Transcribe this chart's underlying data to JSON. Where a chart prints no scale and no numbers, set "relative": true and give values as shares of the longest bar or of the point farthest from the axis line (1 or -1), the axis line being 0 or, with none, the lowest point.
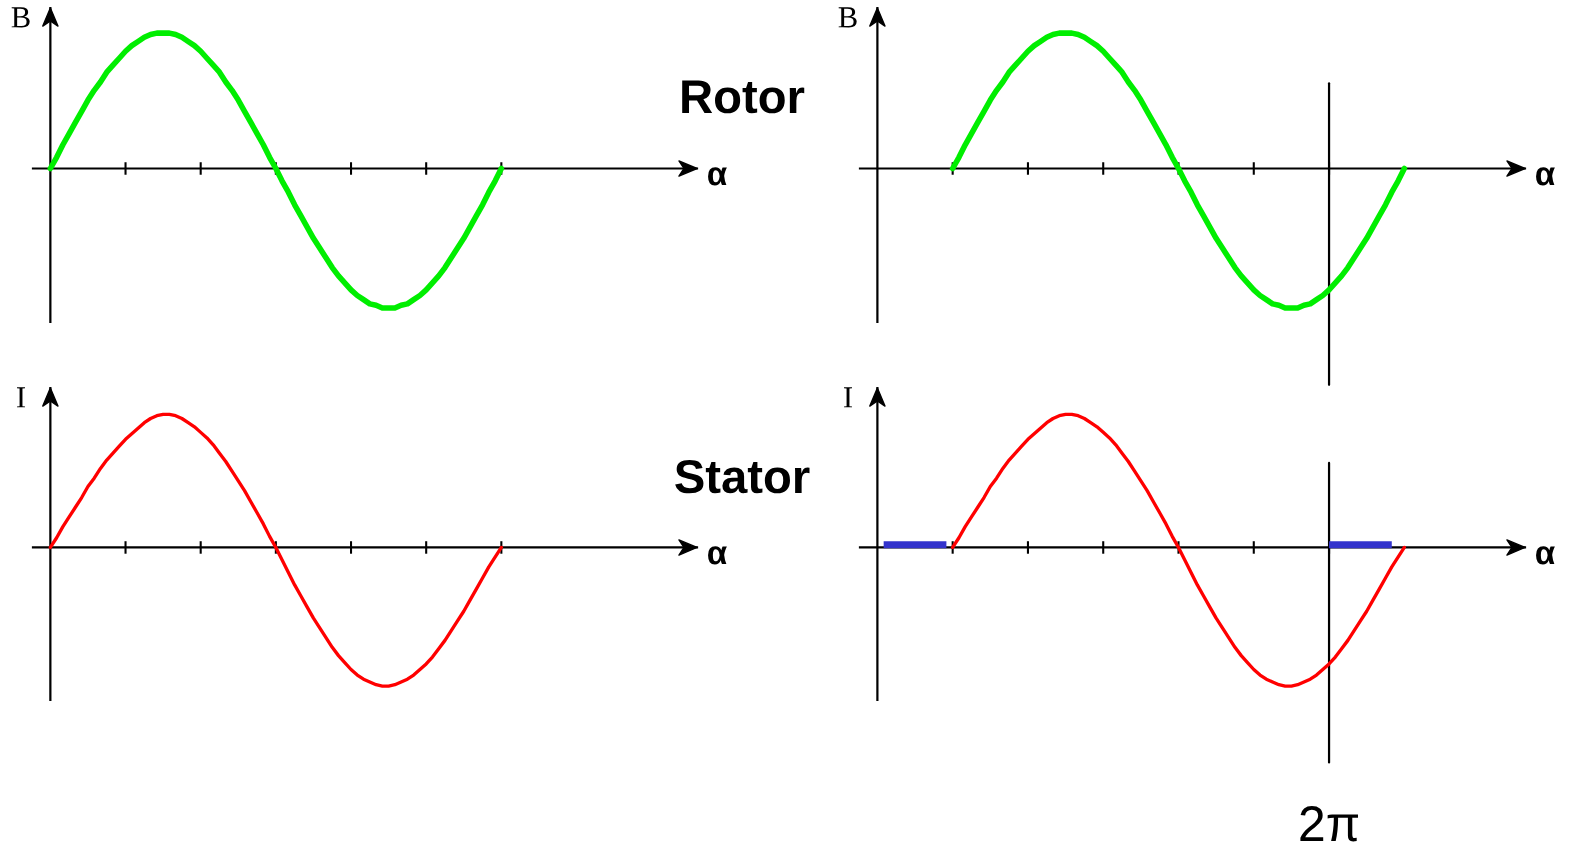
{
  "chart_data": [
    {
      "type": "line",
      "xlabel": "α",
      "ylabel": "B",
      "relative": true,
      "categories": [
        null,
        null,
        null,
        null,
        null,
        null,
        null,
        null,
        null,
        null,
        null,
        null,
        null,
        null,
        null,
        null,
        null,
        null,
        null,
        null,
        null,
        null,
        null,
        null,
        null,
        null,
        null,
        null,
        null,
        null,
        null,
        null,
        null,
        null,
        null,
        null,
        null,
        null,
        null,
        null,
        null,
        null,
        null,
        null,
        null,
        null,
        null,
        null,
        null,
        null,
        null,
        null,
        null,
        null,
        null,
        null,
        null,
        null,
        null,
        null,
        null,
        null,
        null,
        null,
        null,
        null,
        null,
        null,
        null,
        null,
        null,
        null,
        null,
        null,
        null,
        null,
        null,
        null,
        null,
        null,
        null,
        null,
        null,
        null,
        null
      ],
      "series": [
        {
          "color": "#00ee00",
          "values": [
            0,
            0.08,
            0.17,
            0.25,
            0.33,
            0.41,
            0.49,
            0.56,
            0.62,
            0.69,
            0.74,
            0.79,
            0.84,
            0.88,
            0.91,
            0.94,
            0.96,
            0.97,
            0.97,
            0.97,
            0.96,
            0.94,
            0.91,
            0.88,
            0.84,
            0.79,
            0.74,
            0.69,
            0.62,
            0.56,
            0.49,
            0.41,
            0.33,
            0.25,
            0.17,
            0.08,
            0,
            -0.09,
            -0.17,
            -0.26,
            -0.34,
            -0.42,
            -0.5,
            -0.57,
            -0.64,
            -0.71,
            -0.77,
            -0.82,
            -0.87,
            -0.91,
            -0.94,
            -0.97,
            -0.98,
            -1.0,
            -1.0,
            -1.0,
            -0.98,
            -0.97,
            -0.94,
            -0.91,
            -0.87,
            -0.82,
            -0.77,
            -0.71,
            -0.64,
            -0.57,
            -0.5,
            -0.42,
            -0.34,
            -0.26,
            -0.17,
            -0.09,
            0,
            null,
            null,
            null,
            null,
            null,
            null,
            null,
            null,
            null,
            null,
            null,
            null
          ]
        }
      ]
    },
    {
      "type": "line",
      "title": "Rotor",
      "xlabel": "α",
      "ylabel": "B",
      "relative": true,
      "categories": [
        null,
        null,
        null,
        null,
        null,
        null,
        null,
        null,
        null,
        null,
        null,
        null,
        null,
        null,
        null,
        null,
        null,
        null,
        null,
        null,
        null,
        null,
        null,
        null,
        null,
        null,
        null,
        null,
        null,
        null,
        null,
        null,
        null,
        null,
        null,
        null,
        null,
        null,
        null,
        null,
        null,
        null,
        null,
        null,
        null,
        null,
        null,
        null,
        null,
        null,
        null,
        null,
        null,
        null,
        null,
        null,
        null,
        null,
        null,
        null,
        null,
        null,
        null,
        null,
        null,
        null,
        null,
        null,
        null,
        null,
        null,
        null,
        null,
        null,
        null,
        null,
        null,
        null,
        null,
        null,
        null,
        null,
        null,
        null,
        null
      ],
      "series": [
        {
          "color": "#00ee00",
          "values": [
            null,
            null,
            null,
            null,
            null,
            null,
            null,
            null,
            null,
            null,
            null,
            null,
            0,
            0.08,
            0.17,
            0.25,
            0.33,
            0.41,
            0.49,
            0.56,
            0.62,
            0.69,
            0.74,
            0.79,
            0.84,
            0.88,
            0.91,
            0.94,
            0.96,
            0.97,
            0.97,
            0.97,
            0.96,
            0.94,
            0.91,
            0.88,
            0.84,
            0.79,
            0.74,
            0.69,
            0.62,
            0.56,
            0.49,
            0.41,
            0.33,
            0.25,
            0.17,
            0.08,
            0,
            -0.09,
            -0.17,
            -0.26,
            -0.34,
            -0.42,
            -0.5,
            -0.57,
            -0.64,
            -0.71,
            -0.77,
            -0.82,
            -0.87,
            -0.91,
            -0.94,
            -0.97,
            -0.98,
            -1.0,
            -1.0,
            -1.0,
            -0.98,
            -0.97,
            -0.94,
            -0.91,
            -0.87,
            -0.82,
            -0.77,
            -0.71,
            -0.64,
            -0.57,
            -0.5,
            -0.42,
            -0.34,
            -0.26,
            -0.17,
            -0.09,
            0
          ]
        }
      ]
    },
    {
      "type": "line",
      "xlabel": "α",
      "ylabel": "I",
      "relative": true,
      "categories": [
        null,
        null,
        null,
        null,
        null,
        null,
        null,
        null,
        null,
        null,
        null,
        null,
        null,
        null,
        null,
        null,
        null,
        null,
        null,
        null,
        null,
        null,
        null,
        null,
        null,
        null,
        null,
        null,
        null,
        null,
        null,
        null,
        null,
        null,
        null,
        null,
        null,
        null,
        null,
        null,
        null,
        null,
        null,
        null,
        null,
        null,
        null,
        null,
        null,
        null,
        null,
        null,
        null,
        null,
        null,
        null,
        null,
        null,
        null,
        null,
        null,
        null,
        null,
        null,
        null,
        null,
        null,
        null,
        null,
        null,
        null,
        null,
        null,
        null,
        null,
        null,
        null,
        null,
        null,
        null,
        null,
        null,
        null,
        null,
        null
      ],
      "series": [
        {
          "color": "#ff0000",
          "values": [
            0,
            0.07,
            0.15,
            0.22,
            0.29,
            0.36,
            0.44,
            0.5,
            0.57,
            0.63,
            0.68,
            0.73,
            0.78,
            0.82,
            0.86,
            0.9,
            0.93,
            0.95,
            0.96,
            0.96,
            0.95,
            0.93,
            0.9,
            0.87,
            0.83,
            0.79,
            0.74,
            0.68,
            0.62,
            0.55,
            0.48,
            0.41,
            0.33,
            0.25,
            0.17,
            0.08,
            0,
            -0.09,
            -0.18,
            -0.27,
            -0.35,
            -0.43,
            -0.51,
            -0.58,
            -0.65,
            -0.72,
            -0.78,
            -0.83,
            -0.88,
            -0.92,
            -0.95,
            -0.97,
            -0.99,
            -1.0,
            -1.0,
            -0.99,
            -0.97,
            -0.95,
            -0.92,
            -0.88,
            -0.84,
            -0.79,
            -0.73,
            -0.67,
            -0.6,
            -0.53,
            -0.46,
            -0.38,
            -0.3,
            -0.22,
            -0.14,
            -0.07,
            0,
            null,
            null,
            null,
            null,
            null,
            null,
            null,
            null,
            null,
            null,
            null,
            null
          ]
        }
      ]
    },
    {
      "type": "line",
      "title": "Stator",
      "xlabel": "α",
      "ylabel": "I",
      "relative": true,
      "annotations": [
        "2π"
      ],
      "categories": [
        null,
        null,
        null,
        null,
        null,
        null,
        null,
        null,
        null,
        null,
        null,
        null,
        null,
        null,
        null,
        null,
        null,
        null,
        null,
        null,
        null,
        null,
        null,
        null,
        null,
        null,
        null,
        null,
        null,
        null,
        null,
        null,
        null,
        null,
        null,
        null,
        null,
        null,
        null,
        null,
        null,
        null,
        null,
        null,
        null,
        null,
        null,
        null,
        null,
        null,
        null,
        null,
        null,
        null,
        null,
        null,
        null,
        null,
        null,
        null,
        null,
        null,
        null,
        null,
        null,
        null,
        null,
        null,
        null,
        null,
        null,
        null,
        null,
        null,
        null,
        null,
        null,
        null,
        null,
        null,
        null,
        null,
        null,
        null,
        null
      ],
      "series": [
        {
          "color": "#ff0000",
          "values": [
            null,
            null,
            null,
            null,
            null,
            null,
            null,
            null,
            null,
            null,
            null,
            null,
            0,
            0.07,
            0.15,
            0.22,
            0.29,
            0.36,
            0.44,
            0.5,
            0.57,
            0.63,
            0.68,
            0.73,
            0.78,
            0.82,
            0.86,
            0.9,
            0.93,
            0.95,
            0.96,
            0.96,
            0.95,
            0.93,
            0.9,
            0.87,
            0.83,
            0.79,
            0.74,
            0.68,
            0.62,
            0.55,
            0.48,
            0.41,
            0.33,
            0.25,
            0.17,
            0.08,
            0,
            -0.09,
            -0.18,
            -0.27,
            -0.35,
            -0.43,
            -0.51,
            -0.58,
            -0.65,
            -0.72,
            -0.78,
            -0.83,
            -0.88,
            -0.92,
            -0.95,
            -0.97,
            -0.99,
            -1.0,
            -1.0,
            -0.99,
            -0.97,
            -0.95,
            -0.92,
            -0.88,
            -0.84,
            -0.79,
            -0.73,
            -0.67,
            -0.6,
            -0.53,
            -0.46,
            -0.38,
            -0.3,
            -0.22,
            -0.14,
            -0.07,
            0
          ]
        },
        {
          "color": "#3333cc",
          "values": [
            null,
            0.02,
            0.02,
            0.02,
            0.02,
            0.02,
            0.02,
            0.02,
            0.02,
            0.02,
            0.02,
            0.02,
            null,
            null,
            null,
            null,
            null,
            null,
            null,
            null,
            null,
            null,
            null,
            null,
            null,
            null,
            null,
            null,
            null,
            null,
            null,
            null,
            null,
            null,
            null,
            null,
            null,
            null,
            null,
            null,
            null,
            null,
            null,
            null,
            null,
            null,
            null,
            null,
            null,
            null,
            null,
            null,
            null,
            null,
            null,
            null,
            null,
            null,
            null,
            null,
            null,
            null,
            null,
            null,
            null,
            null,
            null,
            null,
            null,
            null,
            null,
            null,
            null,
            null,
            null,
            null,
            null,
            null,
            null,
            null,
            null,
            null,
            null,
            null,
            null
          ]
        },
        {
          "color": "#3333cc",
          "values": [
            null,
            null,
            null,
            null,
            null,
            null,
            null,
            null,
            null,
            null,
            null,
            null,
            null,
            null,
            null,
            null,
            null,
            null,
            null,
            null,
            null,
            null,
            null,
            null,
            null,
            null,
            null,
            null,
            null,
            null,
            null,
            null,
            null,
            null,
            null,
            null,
            null,
            null,
            null,
            null,
            null,
            null,
            null,
            null,
            null,
            null,
            null,
            null,
            null,
            null,
            null,
            null,
            null,
            null,
            null,
            null,
            null,
            null,
            null,
            null,
            null,
            null,
            null,
            null,
            null,
            null,
            null,
            null,
            null,
            null,
            null,
            null,
            0.02,
            0.02,
            0.02,
            0.02,
            0.02,
            0.02,
            0.02,
            0.02,
            0.02,
            0.02,
            0.02,
            null,
            null
          ]
        }
      ]
    }
  ]
}
